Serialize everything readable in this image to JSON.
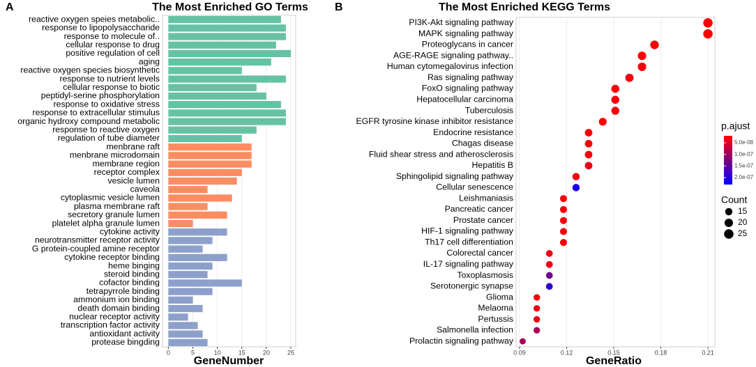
{
  "chart_data": [
    {
      "type": "bar",
      "orientation": "horizontal",
      "label": "A",
      "title": "The Most Enriched GO Terms",
      "xlabel": "GeneNumber",
      "series": [
        {
          "color": "#66c2a5",
          "categories": [
            "reactive oxygen speies metabolic..",
            "response to lipopolysaccharide",
            "response to molecule of..",
            "cellular response to drug",
            "positive regulation of cell",
            "aging",
            "reactive oxygen species biosynthetic",
            "response to nutrient levels",
            "cellular response to biotic",
            "peptidyl-serine phosphorylation",
            "response to oxidative stress",
            "response to extracellular stimulus",
            "organic hydroxy compound metabolic",
            "response to reactive oxygen",
            "regulation of tube diameter"
          ],
          "values": [
            23,
            24,
            24,
            22,
            25,
            21,
            15,
            24,
            18,
            20,
            23,
            24,
            24,
            18,
            15
          ]
        },
        {
          "color": "#fc8d62",
          "categories": [
            "menbrane raft",
            "menbrane microdomain",
            "membrane region",
            "receptor complex",
            "vesicle lumen",
            "caveola",
            "cytoplasmic vesicle lumen",
            "plasma membrane raft",
            "secretory granule lumen",
            "platelet alpha granule lumen"
          ],
          "values": [
            17,
            17,
            17,
            15,
            14,
            8,
            13,
            8,
            12,
            5
          ]
        },
        {
          "color": "#8da0cb",
          "categories": [
            "cytokine activity",
            "neurotransmitter receptor activity",
            "G protein-coupled amine receptor",
            "cytokine receptor binding",
            "heme binging",
            "steroid binding",
            "cofactor binding",
            "tetrapyrrole binding",
            "ammonium ion binding",
            "death domain binding",
            "nuclear receptor activity",
            "transcription factor activity",
            "antioxidant activity",
            "protease bingding"
          ],
          "values": [
            12,
            9,
            7,
            12,
            9,
            8,
            15,
            9,
            5,
            7,
            4,
            6,
            7,
            8
          ]
        }
      ],
      "xlim": [
        -1.2,
        26
      ],
      "xticks": [
        0,
        5,
        10,
        15,
        20,
        25
      ],
      "grid": true
    },
    {
      "type": "dot",
      "label": "B",
      "title": "The Most Enriched KEGG Terms",
      "xlabel": "GeneRatio",
      "categories": [
        "PI3K-Akt signaling pathway",
        "MAPK signaling pathway",
        "Proteoglycans in cancer",
        "AGE-RAGE signaling pathway..",
        "Human cytomegalovirus infection",
        "Ras signaling pathway",
        "FoxO signaling pathway",
        "Hepatocellular carcinoma",
        "Tuberculosis",
        "EGFR tyrosine kinase inhibitor resistance",
        "Endocrine resistance",
        "Chagas disease",
        "Fluid shear stress and atherosclerosis",
        "Hepatitis B",
        "Sphingolipid signaling pathway",
        "Cellular senescence",
        "Leishmaniasis",
        "Pancreatic cancer",
        "Prostate cancer",
        "HIF-1 signaling pathway",
        "Th17 cell differentiation",
        "Colorectal cancer",
        "IL-17 signaling pathway",
        "Toxoplasmosis",
        "Serotonergic synapse",
        "Glioma",
        "Melaoma",
        "Pertussis",
        "Salmonella infection",
        "Prolactin signaling pathway"
      ],
      "values": [
        0.21,
        0.21,
        0.176,
        0.168,
        0.168,
        0.16,
        0.151,
        0.151,
        0.151,
        0.143,
        0.134,
        0.134,
        0.134,
        0.134,
        0.126,
        0.126,
        0.118,
        0.118,
        0.118,
        0.118,
        0.118,
        0.109,
        0.109,
        0.109,
        0.109,
        0.101,
        0.101,
        0.101,
        0.101,
        0.092
      ],
      "sizes": [
        25,
        25,
        21,
        20,
        20,
        19,
        18,
        18,
        18,
        17,
        16,
        16,
        16,
        16,
        15,
        15,
        14,
        14,
        14,
        14,
        14,
        13,
        13,
        13,
        13,
        12,
        12,
        12,
        12,
        11
      ],
      "color_values": [
        2.2e-08,
        2.2e-08,
        2.3e-08,
        2.2e-08,
        2.5e-08,
        3e-08,
        2.4e-08,
        2.8e-08,
        2.8e-08,
        2.3e-08,
        2.6e-08,
        2.7e-08,
        2.7e-08,
        4e-08,
        3e-08,
        2.1e-07,
        2.6e-08,
        2.8e-08,
        2.8e-08,
        2.8e-08,
        3e-08,
        3.5e-08,
        3.5e-08,
        1.4e-07,
        1.9e-07,
        3e-08,
        3.5e-08,
        3.5e-08,
        9e-08,
        9e-08
      ],
      "xlim": [
        0.0878,
        0.2144
      ],
      "xticks": [
        0.09,
        0.12,
        0.15,
        0.18,
        0.21
      ],
      "grid": true,
      "color_title": "p.ajust",
      "colors": [
        "#ff0000",
        "#0000ff"
      ],
      "clim": [
        2e-08,
        2.3e-07
      ],
      "cticks": [
        {
          "value": 5e-08,
          "label": "5.0e-08"
        },
        {
          "value": 1e-07,
          "label": "1.0e-07"
        },
        {
          "value": 1.5e-07,
          "label": "1.5e-07"
        },
        {
          "value": 2e-07,
          "label": "2.0e-07"
        }
      ],
      "size_title": "Count",
      "size_ticks": [
        15,
        20,
        25
      ]
    }
  ]
}
